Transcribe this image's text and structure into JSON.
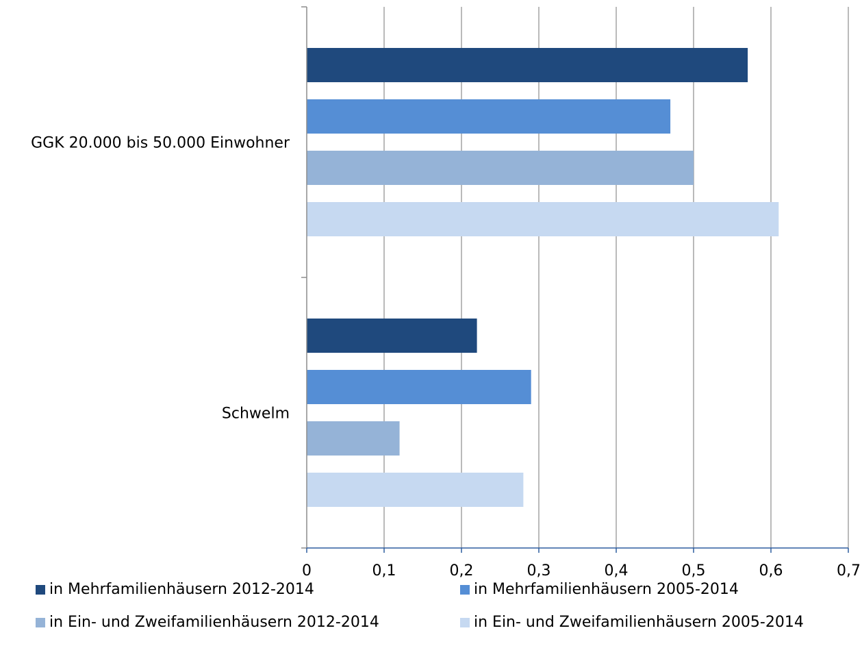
{
  "chart_data": {
    "type": "bar",
    "orientation": "horizontal",
    "categories": [
      "GGK 20.000 bis 50.000 Einwohner",
      "Schwelm"
    ],
    "series": [
      {
        "name": "in Mehrfamilienhäusern 2012-2014",
        "color": "#1f497d",
        "values": [
          0.57,
          0.22
        ]
      },
      {
        "name": "in Mehrfamilienhäusern 2005-2014",
        "color": "#558ed5",
        "values": [
          0.47,
          0.29
        ]
      },
      {
        "name": "in Ein- und Zweifamilienhäusern 2012-2014",
        "color": "#95b3d7",
        "values": [
          0.5,
          0.12
        ]
      },
      {
        "name": "in Ein- und Zweifamilienhäusern 2005-2014",
        "color": "#c6d9f1",
        "values": [
          0.61,
          0.28
        ]
      }
    ],
    "xlim": [
      0,
      0.7
    ],
    "xticks": [
      "0",
      "0,1",
      "0,2",
      "0,3",
      "0,4",
      "0,5",
      "0,6",
      "0,7"
    ],
    "grid": true,
    "legend_position": "bottom",
    "title": "",
    "xlabel": "",
    "ylabel": ""
  }
}
